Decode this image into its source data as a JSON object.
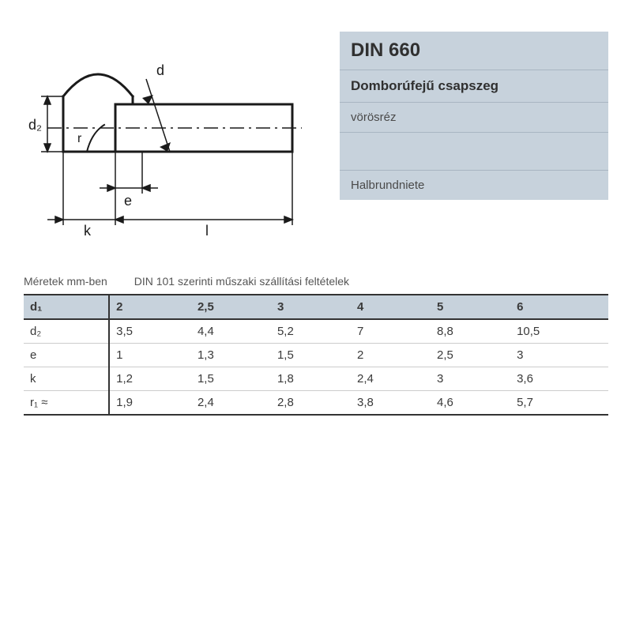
{
  "info": {
    "din": "DIN 660",
    "name": "Domborúfejű csapszeg",
    "material": "vörösréz",
    "de_name": "Halbrundniete"
  },
  "caption": {
    "units": "Méretek mm-ben",
    "note": "DIN 101 szerinti műszaki szállítási feltételek"
  },
  "diagram_labels": {
    "d2": "d₂",
    "d": "d",
    "e": "e",
    "k": "k",
    "l": "l",
    "r": "r"
  },
  "table": {
    "type": "table",
    "header_label": "d₁",
    "columns": [
      "2",
      "2,5",
      "3",
      "4",
      "5",
      "6"
    ],
    "rows": [
      {
        "label": "d₂",
        "cells": [
          "3,5",
          "4,4",
          "5,2",
          "7",
          "8,8",
          "10,5"
        ]
      },
      {
        "label": "e",
        "cells": [
          "1",
          "1,3",
          "1,5",
          "2",
          "2,5",
          "3"
        ]
      },
      {
        "label": "k",
        "cells": [
          "1,2",
          "1,5",
          "1,8",
          "2,4",
          "3",
          "3,6"
        ]
      },
      {
        "label": "r₁ ≈",
        "cells": [
          "1,9",
          "2,4",
          "2,8",
          "3,8",
          "4,6",
          "5,7"
        ]
      }
    ],
    "header_bg": "#c7d2dc",
    "border_color": "#333333",
    "row_border": "#cccccc",
    "font_size": 15
  },
  "colors": {
    "panel_bg": "#c7d2dc",
    "panel_border": "#a8b5c2",
    "text": "#3a3a3a",
    "stroke": "#1a1a1a"
  }
}
